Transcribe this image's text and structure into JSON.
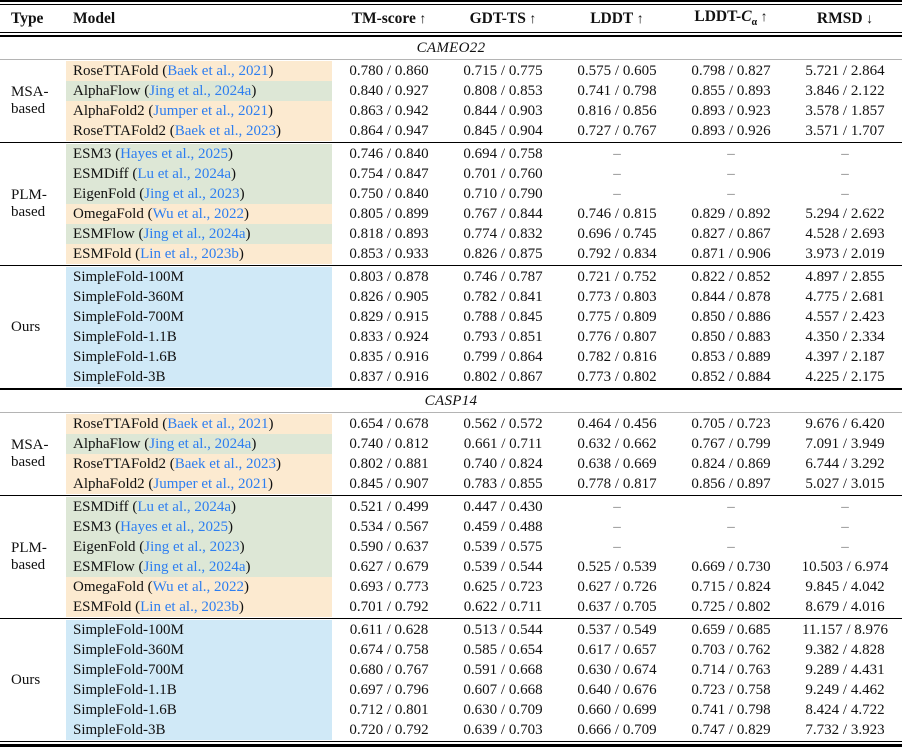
{
  "table": {
    "columns": [
      {
        "key": "type",
        "label": "Type"
      },
      {
        "key": "model",
        "label": "Model"
      },
      {
        "key": "tm-score",
        "label": "TM-score",
        "arrow": "↑"
      },
      {
        "key": "gdt-ts",
        "label": "GDT-TS",
        "arrow": "↑"
      },
      {
        "key": "lddt",
        "label": "LDDT",
        "arrow": "↑"
      },
      {
        "key": "lddt-ca",
        "label": "LDDT-",
        "italic": "C",
        "sub": "α",
        "arrow": "↑"
      },
      {
        "key": "rmsd",
        "label": "RMSD",
        "arrow": "↓"
      }
    ],
    "highlight_colors": {
      "peach": "#fcead0",
      "green": "#dde7d6",
      "blue": "#d0e9f7"
    },
    "link_color": "#2d7ef0",
    "dash_color": "#7a7a7a",
    "sections": [
      {
        "title": "CAMEO22",
        "groups": [
          {
            "type_label": "MSA-based",
            "rows": [
              {
                "model": "RoseTTAFold",
                "cite": "Baek et al., 2021",
                "bg": "peach",
                "values": [
                  "0.780 / 0.860",
                  "0.715 / 0.775",
                  "0.575 / 0.605",
                  "0.798 / 0.827",
                  "5.721 / 2.864"
                ]
              },
              {
                "model": "AlphaFlow",
                "cite": "Jing et al., 2024a",
                "bg": "green",
                "values": [
                  "0.840 / 0.927",
                  "0.808 / 0.853",
                  "0.741 / 0.798",
                  "0.855 / 0.893",
                  "3.846 / 2.122"
                ]
              },
              {
                "model": "AlphaFold2",
                "cite": "Jumper et al., 2021",
                "bg": "peach",
                "values": [
                  "0.863 / 0.942",
                  "0.844 / 0.903",
                  "0.816 / 0.856",
                  "0.893 / 0.923",
                  "3.578 / 1.857"
                ]
              },
              {
                "model": "RoseTTAFold2",
                "cite": "Baek et al., 2023",
                "bg": "peach",
                "values": [
                  "0.864 / 0.947",
                  "0.845 / 0.904",
                  "0.727 / 0.767",
                  "0.893 / 0.926",
                  "3.571 / 1.707"
                ]
              }
            ]
          },
          {
            "type_label": "PLM-based",
            "rows": [
              {
                "model": "ESM3",
                "cite": "Hayes et al., 2025",
                "bg": "green",
                "values": [
                  "0.746 / 0.840",
                  "0.694 / 0.758",
                  "–",
                  "–",
                  "–"
                ]
              },
              {
                "model": "ESMDiff",
                "cite": "Lu et al., 2024a",
                "bg": "green",
                "values": [
                  "0.754 / 0.847",
                  "0.701 / 0.760",
                  "–",
                  "–",
                  "–"
                ]
              },
              {
                "model": "EigenFold",
                "cite": "Jing et al., 2023",
                "bg": "green",
                "values": [
                  "0.750 / 0.840",
                  "0.710 / 0.790",
                  "–",
                  "–",
                  "–"
                ]
              },
              {
                "model": "OmegaFold",
                "cite": "Wu et al., 2022",
                "bg": "peach",
                "values": [
                  "0.805 / 0.899",
                  "0.767 / 0.844",
                  "0.746 / 0.815",
                  "0.829 / 0.892",
                  "5.294 / 2.622"
                ]
              },
              {
                "model": "ESMFlow",
                "cite": "Jing et al., 2024a",
                "bg": "green",
                "values": [
                  "0.818 / 0.893",
                  "0.774 / 0.832",
                  "0.696 / 0.745",
                  "0.827 / 0.867",
                  "4.528 / 2.693"
                ]
              },
              {
                "model": "ESMFold",
                "cite": "Lin et al., 2023b",
                "bg": "peach",
                "values": [
                  "0.853 / 0.933",
                  "0.826 / 0.875",
                  "0.792 / 0.834",
                  "0.871 / 0.906",
                  "3.973 / 2.019"
                ]
              }
            ]
          },
          {
            "type_label": "Ours",
            "rows": [
              {
                "model": "SimpleFold-100M",
                "bg": "blue",
                "values": [
                  "0.803 / 0.878",
                  "0.746 / 0.787",
                  "0.721 / 0.752",
                  "0.822 / 0.852",
                  "4.897 / 2.855"
                ]
              },
              {
                "model": "SimpleFold-360M",
                "bg": "blue",
                "values": [
                  "0.826 / 0.905",
                  "0.782 / 0.841",
                  "0.773 / 0.803",
                  "0.844 / 0.878",
                  "4.775 / 2.681"
                ]
              },
              {
                "model": "SimpleFold-700M",
                "bg": "blue",
                "values": [
                  "0.829 / 0.915",
                  "0.788 / 0.845",
                  "0.775 / 0.809",
                  "0.850 / 0.886",
                  "4.557 / 2.423"
                ]
              },
              {
                "model": "SimpleFold-1.1B",
                "bg": "blue",
                "values": [
                  "0.833 / 0.924",
                  "0.793 / 0.851",
                  "0.776 / 0.807",
                  "0.850 / 0.883",
                  "4.350 / 2.334"
                ]
              },
              {
                "model": "SimpleFold-1.6B",
                "bg": "blue",
                "values": [
                  "0.835 / 0.916",
                  "0.799 / 0.864",
                  "0.782 / 0.816",
                  "0.853 / 0.889",
                  "4.397 / 2.187"
                ]
              },
              {
                "model": "SimpleFold-3B",
                "bg": "blue",
                "values": [
                  "0.837 / 0.916",
                  "0.802 / 0.867",
                  "0.773 / 0.802",
                  "0.852 / 0.884",
                  "4.225 / 2.175"
                ]
              }
            ]
          }
        ]
      },
      {
        "title": "CASP14",
        "groups": [
          {
            "type_label": "MSA-based",
            "rows": [
              {
                "model": "RoseTTAFold",
                "cite": "Baek et al., 2021",
                "bg": "peach",
                "values": [
                  "0.654 / 0.678",
                  "0.562 / 0.572",
                  "0.464 / 0.456",
                  "0.705 / 0.723",
                  "9.676 / 6.420"
                ]
              },
              {
                "model": "AlphaFlow",
                "cite": "Jing et al., 2024a",
                "bg": "green",
                "values": [
                  "0.740 / 0.812",
                  "0.661 / 0.711",
                  "0.632 / 0.662",
                  "0.767 / 0.799",
                  "7.091 / 3.949"
                ]
              },
              {
                "model": "RoseTTAFold2",
                "cite": "Baek et al., 2023",
                "bg": "peach",
                "values": [
                  "0.802 / 0.881",
                  "0.740 / 0.824",
                  "0.638 / 0.669",
                  "0.824 / 0.869",
                  "6.744 / 3.292"
                ]
              },
              {
                "model": "AlphaFold2",
                "cite": "Jumper et al., 2021",
                "bg": "peach",
                "values": [
                  "0.845 / 0.907",
                  "0.783 / 0.855",
                  "0.778 / 0.817",
                  "0.856 / 0.897",
                  "5.027 / 3.015"
                ]
              }
            ]
          },
          {
            "type_label": "PLM-based",
            "rows": [
              {
                "model": "ESMDiff",
                "cite": "Lu et al., 2024a",
                "bg": "green",
                "values": [
                  "0.521 / 0.499",
                  "0.447 / 0.430",
                  "–",
                  "–",
                  "–"
                ]
              },
              {
                "model": "ESM3",
                "cite": "Hayes et al., 2025",
                "bg": "green",
                "values": [
                  "0.534 / 0.567",
                  "0.459 / 0.488",
                  "–",
                  "–",
                  "–"
                ]
              },
              {
                "model": "EigenFold",
                "cite": "Jing et al., 2023",
                "bg": "green",
                "values": [
                  "0.590 / 0.637",
                  "0.539 / 0.575",
                  "–",
                  "–",
                  "–"
                ]
              },
              {
                "model": "ESMFlow",
                "cite": "Jing et al., 2024a",
                "bg": "green",
                "values": [
                  "0.627 / 0.679",
                  "0.539 / 0.544",
                  "0.525 / 0.539",
                  "0.669 / 0.730",
                  "10.503 / 6.974"
                ]
              },
              {
                "model": "OmegaFold",
                "cite": "Wu et al., 2022",
                "bg": "peach",
                "values": [
                  "0.693 / 0.773",
                  "0.625 / 0.723",
                  "0.627 / 0.726",
                  "0.715 / 0.824",
                  "9.845 / 4.042"
                ]
              },
              {
                "model": "ESMFold",
                "cite": "Lin et al., 2023b",
                "bg": "peach",
                "values": [
                  "0.701 / 0.792",
                  "0.622 / 0.711",
                  "0.637 / 0.705",
                  "0.725 / 0.802",
                  "8.679 / 4.016"
                ]
              }
            ]
          },
          {
            "type_label": "Ours",
            "rows": [
              {
                "model": "SimpleFold-100M",
                "bg": "blue",
                "values": [
                  "0.611 / 0.628",
                  "0.513 / 0.544",
                  "0.537 / 0.549",
                  "0.659 / 0.685",
                  "11.157 / 8.976"
                ]
              },
              {
                "model": "SimpleFold-360M",
                "bg": "blue",
                "values": [
                  "0.674 / 0.758",
                  "0.585 / 0.654",
                  "0.617 / 0.657",
                  "0.703 / 0.762",
                  "9.382 / 4.828"
                ]
              },
              {
                "model": "SimpleFold-700M",
                "bg": "blue",
                "values": [
                  "0.680 / 0.767",
                  "0.591 / 0.668",
                  "0.630 / 0.674",
                  "0.714 / 0.763",
                  "9.289 / 4.431"
                ]
              },
              {
                "model": "SimpleFold-1.1B",
                "bg": "blue",
                "values": [
                  "0.697 / 0.796",
                  "0.607 / 0.668",
                  "0.640 / 0.676",
                  "0.723 / 0.758",
                  "9.249 / 4.462"
                ]
              },
              {
                "model": "SimpleFold-1.6B",
                "bg": "blue",
                "values": [
                  "0.712 / 0.801",
                  "0.630 / 0.709",
                  "0.660 / 0.699",
                  "0.741 / 0.798",
                  "8.424 / 4.722"
                ]
              },
              {
                "model": "SimpleFold-3B",
                "bg": "blue",
                "values": [
                  "0.720 / 0.792",
                  "0.639 / 0.703",
                  "0.666 / 0.709",
                  "0.747 / 0.829",
                  "7.732 / 3.923"
                ]
              }
            ]
          }
        ]
      }
    ]
  }
}
